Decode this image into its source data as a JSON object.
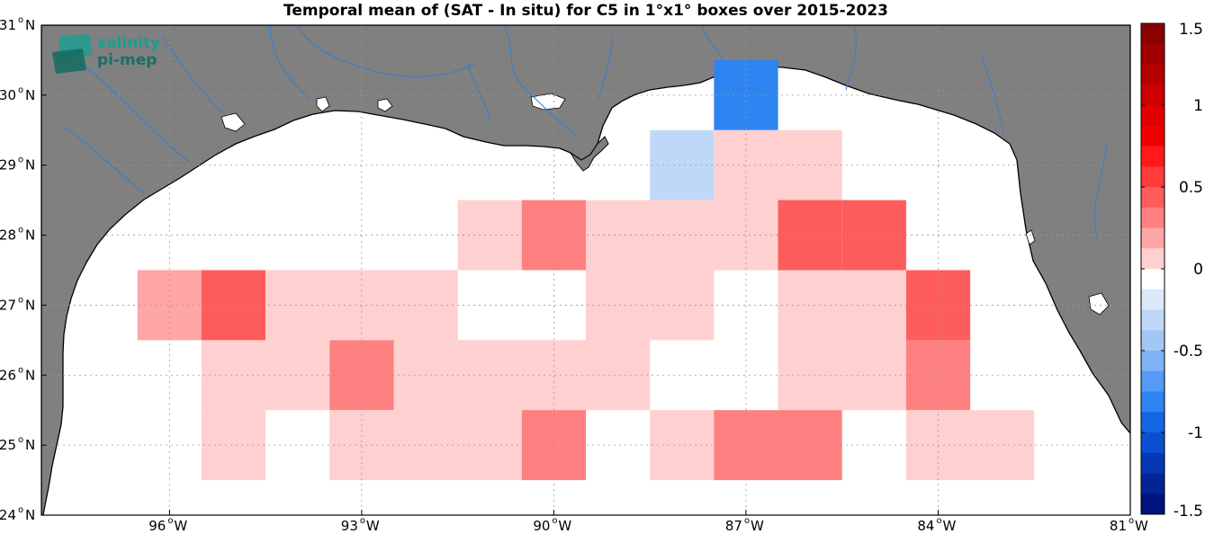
{
  "title": "Temporal mean of (SAT - In situ) for C5 in 1°x1° boxes over 2015-2023",
  "logo": {
    "line1": "salinity",
    "line2": "pi-mep"
  },
  "chart_data": {
    "type": "heatmap",
    "title": "Temporal mean of (SAT - In situ) for C5 in 1°x1° boxes over 2015-2023",
    "lon_range": [
      -98,
      -81
    ],
    "lat_range": [
      24,
      31
    ],
    "x_ticks": [
      {
        "value": -96,
        "label": "96",
        "suffix": "W"
      },
      {
        "value": -93,
        "label": "93",
        "suffix": "W"
      },
      {
        "value": -90,
        "label": "90",
        "suffix": "W"
      },
      {
        "value": -87,
        "label": "87",
        "suffix": "W"
      },
      {
        "value": -84,
        "label": "84",
        "suffix": "W"
      },
      {
        "value": -81,
        "label": "81",
        "suffix": "W"
      }
    ],
    "y_ticks": [
      {
        "value": 31,
        "label": "31",
        "suffix": "N"
      },
      {
        "value": 30,
        "label": "30",
        "suffix": "N"
      },
      {
        "value": 29,
        "label": "29",
        "suffix": "N"
      },
      {
        "value": 28,
        "label": "28",
        "suffix": "N"
      },
      {
        "value": 27,
        "label": "27",
        "suffix": "N"
      },
      {
        "value": 26,
        "label": "26",
        "suffix": "N"
      },
      {
        "value": 25,
        "label": "25",
        "suffix": "N"
      },
      {
        "value": 24,
        "label": "24",
        "suffix": "N"
      }
    ],
    "grid": "dotted",
    "colorbar": {
      "range": [
        -1.5,
        1.5
      ],
      "ticks": [
        {
          "value": 1.5,
          "label": "1.5"
        },
        {
          "value": 1,
          "label": "1"
        },
        {
          "value": 0.5,
          "label": "0.5"
        },
        {
          "value": 0,
          "label": "0"
        },
        {
          "value": -0.5,
          "label": "-0.5"
        },
        {
          "value": -1,
          "label": "-1"
        },
        {
          "value": -1.5,
          "label": "-1.5"
        }
      ],
      "levels": 24,
      "colors_top_to_bottom": [
        "#8b0000",
        "#a00000",
        "#b50000",
        "#cc0000",
        "#e00000",
        "#f00000",
        "#ff1a1a",
        "#ff3b3b",
        "#ff5c5c",
        "#ff8080",
        "#ffa6a6",
        "#ffd0d0",
        "#ffffff",
        "#dce9fb",
        "#c0d8f8",
        "#a2c6f6",
        "#7fb2f5",
        "#559af4",
        "#2e84f0",
        "#1366e6",
        "#0a4fd0",
        "#0638b4",
        "#032497",
        "#00127c"
      ],
      "position": "right"
    },
    "cells": [
      {
        "lon": -87,
        "lat": 30,
        "value": -0.75
      },
      {
        "lon": -88,
        "lat": 29,
        "value": -0.25
      },
      {
        "lon": -87,
        "lat": 29,
        "value": 0.1
      },
      {
        "lon": -86,
        "lat": 29,
        "value": 0.1
      },
      {
        "lon": -94,
        "lat": 28,
        "value": -0.12
      },
      {
        "lon": -91,
        "lat": 28,
        "value": 0.1
      },
      {
        "lon": -90,
        "lat": 28,
        "value": 0.3
      },
      {
        "lon": -89,
        "lat": 28,
        "value": 0.1
      },
      {
        "lon": -88,
        "lat": 28,
        "value": 0.1
      },
      {
        "lon": -87,
        "lat": 28,
        "value": 0.1
      },
      {
        "lon": -86,
        "lat": 28,
        "value": 0.4
      },
      {
        "lon": -85,
        "lat": 28,
        "value": 0.4
      },
      {
        "lon": -96,
        "lat": 27,
        "value": 0.25
      },
      {
        "lon": -95,
        "lat": 27,
        "value": 0.45
      },
      {
        "lon": -94,
        "lat": 27,
        "value": 0.1
      },
      {
        "lon": -93,
        "lat": 27,
        "value": 0.1
      },
      {
        "lon": -92,
        "lat": 27,
        "value": 0.1
      },
      {
        "lon": -89,
        "lat": 27,
        "value": 0.1
      },
      {
        "lon": -88,
        "lat": 27,
        "value": 0.1
      },
      {
        "lon": -86,
        "lat": 27,
        "value": 0.1
      },
      {
        "lon": -85,
        "lat": 27,
        "value": 0.1
      },
      {
        "lon": -84,
        "lat": 27,
        "value": 0.45
      },
      {
        "lon": -95,
        "lat": 26,
        "value": 0.1
      },
      {
        "lon": -94,
        "lat": 26,
        "value": 0.1
      },
      {
        "lon": -93,
        "lat": 26,
        "value": 0.3
      },
      {
        "lon": -92,
        "lat": 26,
        "value": 0.1
      },
      {
        "lon": -91,
        "lat": 26,
        "value": 0.1
      },
      {
        "lon": -90,
        "lat": 26,
        "value": 0.1
      },
      {
        "lon": -89,
        "lat": 26,
        "value": 0.1
      },
      {
        "lon": -86,
        "lat": 26,
        "value": 0.1
      },
      {
        "lon": -85,
        "lat": 26,
        "value": 0.1
      },
      {
        "lon": -84,
        "lat": 26,
        "value": 0.3
      },
      {
        "lon": -95,
        "lat": 25,
        "value": 0.1
      },
      {
        "lon": -93,
        "lat": 25,
        "value": 0.1
      },
      {
        "lon": -92,
        "lat": 25,
        "value": 0.1
      },
      {
        "lon": -91,
        "lat": 25,
        "value": 0.1
      },
      {
        "lon": -90,
        "lat": 25,
        "value": 0.3
      },
      {
        "lon": -88,
        "lat": 25,
        "value": 0.1
      },
      {
        "lon": -87,
        "lat": 25,
        "value": 0.3
      },
      {
        "lon": -86,
        "lat": 25,
        "value": 0.3
      },
      {
        "lon": -84,
        "lat": 25,
        "value": 0.1
      },
      {
        "lon": -83,
        "lat": 25,
        "value": 0.1
      }
    ]
  }
}
